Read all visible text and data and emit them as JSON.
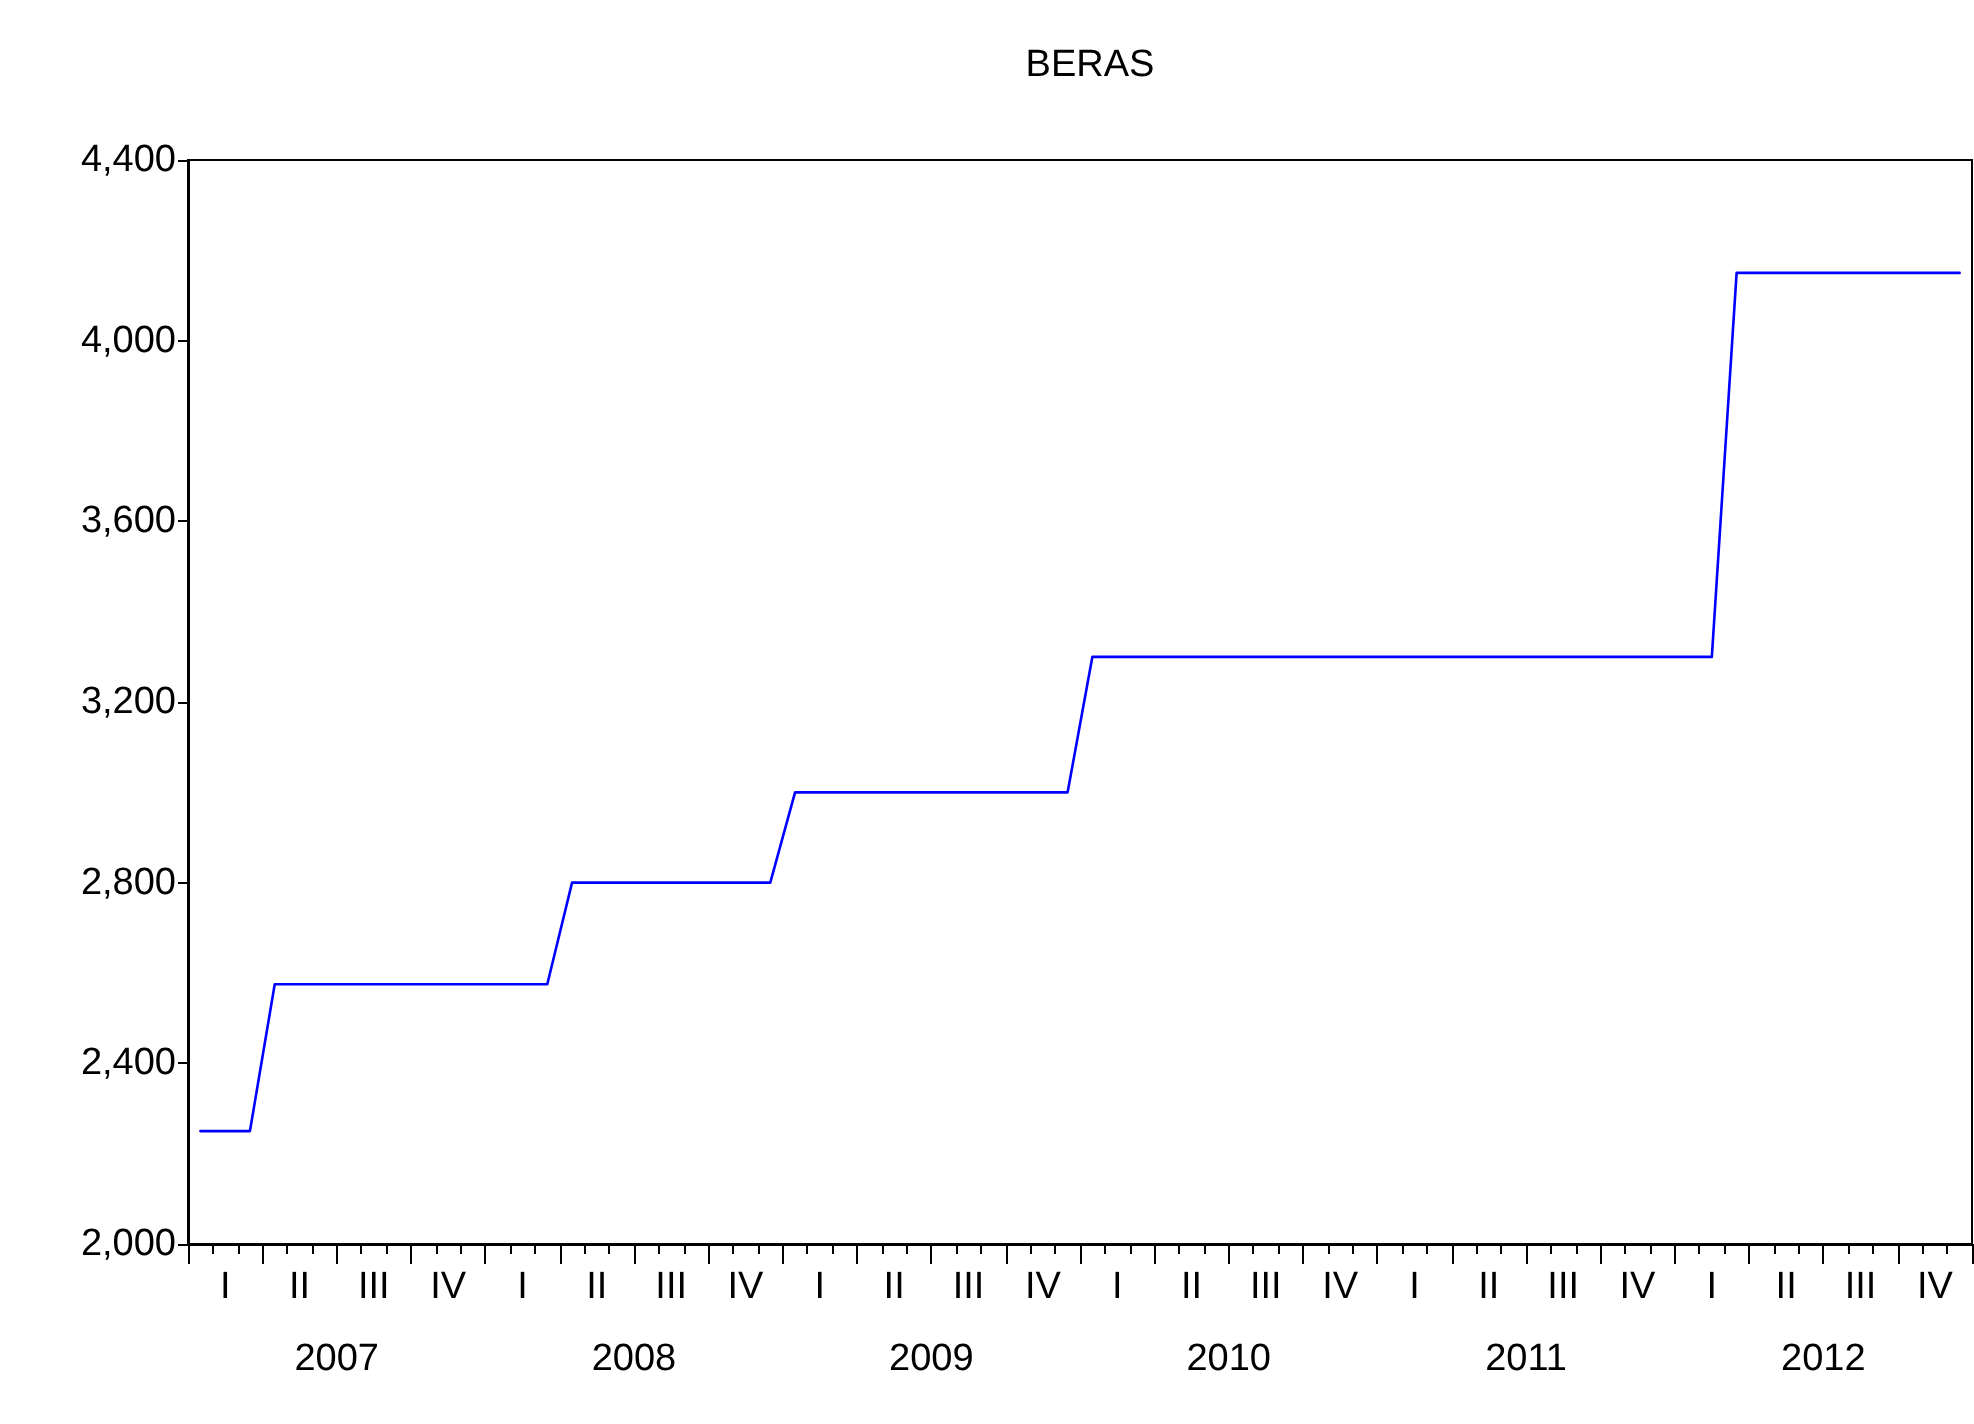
{
  "chart_data": {
    "type": "line",
    "title": "BERAS",
    "categories": [
      null,
      "I",
      null,
      null,
      "II",
      null,
      null,
      "III",
      null,
      null,
      "IV",
      null,
      null,
      "I",
      null,
      null,
      "II",
      null,
      null,
      "III",
      null,
      null,
      "IV",
      null,
      null,
      "I",
      null,
      null,
      "II",
      null,
      null,
      "III",
      null,
      null,
      "IV",
      null,
      null,
      "I",
      null,
      null,
      "II",
      null,
      null,
      "III",
      null,
      null,
      "IV",
      null,
      null,
      "I",
      null,
      null,
      "II",
      null,
      null,
      "III",
      null,
      null,
      "IV",
      null,
      null,
      "I",
      null,
      null,
      "II",
      null,
      null,
      "III",
      null,
      null,
      "IV",
      null
    ],
    "series": [
      {
        "color": "#0000ff",
        "values": [
          2250,
          2250,
          2250,
          2575,
          2575,
          2575,
          2575,
          2575,
          2575,
          2575,
          2575,
          2575,
          2575,
          2575,
          2575,
          2800,
          2800,
          2800,
          2800,
          2800,
          2800,
          2800,
          2800,
          2800,
          3000,
          3000,
          3000,
          3000,
          3000,
          3000,
          3000,
          3000,
          3000,
          3000,
          3000,
          3000,
          3300,
          3300,
          3300,
          3300,
          3300,
          3300,
          3300,
          3300,
          3300,
          3300,
          3300,
          3300,
          3300,
          3300,
          3300,
          3300,
          3300,
          3300,
          3300,
          3300,
          3300,
          3300,
          3300,
          3300,
          3300,
          3300,
          4150,
          4150,
          4150,
          4150,
          4150,
          4150,
          4150,
          4150,
          4150,
          4150
        ]
      }
    ],
    "annotations": [
      "2007",
      "2008",
      "2009",
      "2010",
      "2011",
      "2012"
    ],
    "ylim": [
      2000,
      4400
    ],
    "yticks": [
      {
        "value": 2000,
        "label": "2,000"
      },
      {
        "value": 2400,
        "label": "2,400"
      },
      {
        "value": 2800,
        "label": "2,800"
      },
      {
        "value": 3200,
        "label": "3,200"
      },
      {
        "value": 3600,
        "label": "3,600"
      },
      {
        "value": 4000,
        "label": "4,000"
      },
      {
        "value": 4400,
        "label": "4,400"
      }
    ],
    "marker": "none",
    "line_style": "solid"
  }
}
